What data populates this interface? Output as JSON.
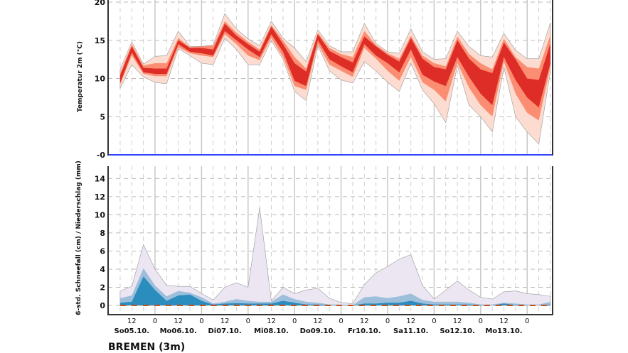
{
  "station_title": "BREMEN (3m)",
  "chart_data": [
    {
      "type": "area",
      "ylabel": "Temperatur 2m (°C)",
      "ylim": [
        0,
        20
      ],
      "yticks": [
        0,
        5,
        10,
        15,
        20
      ],
      "ytick_labels": [
        "-0",
        "5",
        "10",
        "15",
        "20"
      ],
      "grid": true,
      "colors": {
        "outer": "#fcdcd0",
        "mid": "#fb8e72",
        "inner": "#de2d26",
        "zero_line": "#3344ff"
      },
      "times": [
        "05.10. 06",
        "05.10. 12",
        "05.10. 18",
        "06.10. 00",
        "06.10. 06",
        "06.10. 12",
        "06.10. 18",
        "07.10. 00",
        "07.10. 06",
        "07.10. 12",
        "07.10. 18",
        "08.10. 00",
        "08.10. 06",
        "08.10. 12",
        "08.10. 18",
        "09.10. 00",
        "09.10. 06",
        "09.10. 12",
        "09.10. 18",
        "10.10. 00",
        "10.10. 06",
        "10.10. 12",
        "10.10. 18",
        "11.10. 00",
        "11.10. 06",
        "11.10. 12",
        "11.10. 18",
        "12.10. 00",
        "12.10. 06",
        "12.10. 12",
        "12.10. 18",
        "13.10. 00",
        "13.10. 06",
        "13.10. 12",
        "13.10. 18",
        "14.10. 00",
        "14.10. 06",
        "14.10. 12"
      ],
      "bands": {
        "outer_low": [
          8.7,
          11.8,
          10.2,
          9.5,
          9.3,
          13.9,
          13.0,
          12.0,
          11.8,
          15.3,
          13.8,
          11.8,
          11.8,
          15.0,
          12.5,
          8.3,
          7.1,
          14.3,
          11.0,
          9.8,
          9.4,
          12.2,
          11.0,
          9.5,
          8.3,
          12.0,
          8.5,
          6.7,
          4.2,
          11.7,
          6.5,
          5.0,
          3.0,
          11.5,
          5.0,
          3.0,
          1.4,
          11.0
        ],
        "mid_low": [
          9.2,
          13.0,
          10.6,
          10.3,
          10.3,
          14.1,
          13.3,
          13.0,
          12.8,
          15.8,
          14.5,
          13.0,
          12.4,
          15.3,
          12.8,
          9.0,
          8.5,
          14.5,
          11.8,
          11.0,
          10.2,
          14.0,
          12.6,
          11.0,
          9.7,
          12.8,
          9.5,
          8.5,
          7.0,
          12.0,
          8.8,
          6.5,
          5.0,
          12.2,
          8.0,
          5.5,
          4.5,
          11.5
        ],
        "inner_low": [
          9.4,
          13.4,
          10.8,
          10.6,
          10.6,
          14.5,
          13.5,
          13.3,
          13.0,
          16.2,
          15.0,
          13.8,
          12.8,
          15.8,
          13.5,
          9.7,
          9.0,
          15.0,
          12.5,
          11.6,
          10.8,
          14.5,
          13.0,
          12.0,
          10.8,
          13.8,
          10.5,
          9.6,
          9.0,
          12.8,
          10.2,
          8.0,
          6.5,
          12.8,
          9.8,
          7.5,
          6.2,
          12.0
        ],
        "inner_high": [
          10.4,
          14.2,
          11.4,
          11.3,
          11.3,
          15.0,
          14.0,
          14.0,
          13.8,
          17.2,
          15.6,
          14.5,
          13.5,
          16.8,
          14.5,
          12.0,
          10.9,
          15.8,
          13.6,
          12.8,
          12.1,
          15.5,
          14.2,
          13.1,
          12.2,
          15.3,
          12.6,
          11.5,
          11.2,
          15.0,
          12.6,
          11.2,
          10.7,
          14.7,
          12.5,
          10.0,
          9.8,
          14.6
        ],
        "mid_high": [
          10.7,
          14.5,
          11.7,
          12.0,
          12.0,
          15.3,
          14.1,
          14.2,
          14.3,
          17.5,
          16.0,
          14.8,
          13.8,
          17.0,
          15.0,
          12.8,
          11.3,
          16.0,
          14.0,
          13.2,
          12.8,
          16.2,
          14.4,
          13.3,
          12.6,
          15.6,
          13.0,
          12.0,
          11.6,
          15.5,
          13.2,
          12.0,
          11.2,
          15.2,
          12.8,
          11.5,
          11.3,
          15.7
        ],
        "outer_high": [
          11.2,
          14.8,
          11.9,
          12.9,
          13.0,
          16.2,
          14.2,
          14.2,
          14.4,
          18.5,
          16.5,
          15.2,
          14.3,
          17.5,
          15.3,
          14.0,
          12.2,
          16.4,
          14.3,
          13.5,
          13.5,
          17.2,
          14.6,
          13.5,
          13.3,
          16.5,
          13.5,
          12.5,
          12.6,
          16.2,
          14.2,
          13.0,
          12.8,
          15.9,
          13.7,
          12.6,
          12.6,
          17.3
        ]
      }
    },
    {
      "type": "area",
      "ylabel": "6-std. Schneefall (cm) / Niederschlag (mm)",
      "ylim": [
        -1,
        15.4
      ],
      "yticks": [
        0,
        2,
        4,
        6,
        8,
        10,
        12,
        14
      ],
      "ytick_labels": [
        "0",
        "2",
        "4",
        "6",
        "8",
        "10",
        "12",
        "14"
      ],
      "grid": true,
      "colors": {
        "outer": "#ebe6f1",
        "mid": "#9dbfdc",
        "inner": "#2b8cbe",
        "snow": "#c4501a"
      },
      "xtick_labels": [
        "12",
        "0",
        "12",
        "0",
        "12",
        "0",
        "12",
        "0",
        "12",
        "0",
        "12",
        "0",
        "12",
        "0",
        "12",
        "0",
        "12",
        "0"
      ],
      "day_labels": [
        "So05.10.",
        "Mo06.10.",
        "Di07.10.",
        "Mi08.10.",
        "Do09.10.",
        "Fr10.10.",
        "Sa11.10.",
        "So12.10.",
        "Mo13.10."
      ],
      "precip_max": [
        1.6,
        2.1,
        6.7,
        4.0,
        2.2,
        2.1,
        2.1,
        1.3,
        0.6,
        2.0,
        2.5,
        2.0,
        10.8,
        0.5,
        2.0,
        1.3,
        1.7,
        1.9,
        0.8,
        0.3,
        0.2,
        2.3,
        3.6,
        4.3,
        5.1,
        5.6,
        2.2,
        0.7,
        1.7,
        2.7,
        1.7,
        0.9,
        0.7,
        1.5,
        1.6,
        1.3,
        1.2,
        1.0
      ],
      "precip_upper": [
        0.8,
        1.1,
        4.1,
        2.2,
        1.0,
        1.6,
        1.4,
        0.9,
        0.2,
        0.4,
        0.7,
        0.5,
        0.4,
        0.4,
        1.2,
        0.7,
        0.4,
        0.3,
        0.1,
        0.1,
        0.05,
        0.9,
        1.0,
        0.8,
        1.0,
        1.3,
        0.6,
        0.4,
        0.4,
        0.4,
        0.3,
        0.1,
        0.1,
        0.3,
        0.2,
        0.1,
        0.1,
        0.4
      ],
      "precip_median": [
        0.3,
        0.4,
        3.2,
        1.7,
        0.5,
        1.1,
        1.2,
        0.5,
        0.1,
        0.2,
        0.25,
        0.2,
        0.2,
        0.2,
        0.5,
        0.3,
        0.1,
        0.1,
        0.05,
        0,
        0,
        0.2,
        0.2,
        0.3,
        0.3,
        0.5,
        0.2,
        0.1,
        0.1,
        0.1,
        0.1,
        0.05,
        0,
        0.2,
        0.05,
        0,
        0,
        0.1
      ],
      "snow": [
        0,
        0,
        0,
        0,
        0,
        0,
        0,
        0,
        0,
        0,
        0,
        0,
        0,
        0,
        0,
        0,
        0,
        0,
        0,
        0,
        0,
        0,
        0,
        0,
        0,
        0,
        0,
        0,
        0,
        0,
        0,
        0,
        0,
        0,
        0,
        0,
        0,
        0
      ]
    }
  ]
}
